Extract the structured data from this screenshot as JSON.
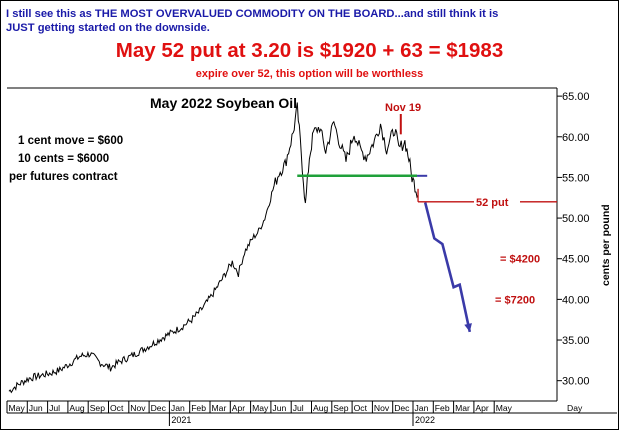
{
  "header": {
    "line1": "I still see this as THE MOST OVERVALUED COMMODITY ON THE BOARD...and still think it is",
    "line2": "JUST getting started on the downside.",
    "headline": "May 52 put at 3.20 is $1920 + 63 = $1983",
    "subnote": "expire over 52, this option will be worthless"
  },
  "colors": {
    "header_text": "#1a1aa8",
    "headline_red": "#e01010",
    "price_line": "#000000",
    "support_line": "#1fa03a",
    "projection": "#3a3aa8",
    "annotation_red": "#c01010"
  },
  "chart_data": {
    "type": "line",
    "title": "May 2022 Soybean Oil",
    "ylabel": "cents per pound",
    "xlabel": "Day",
    "ylim": [
      27.5,
      66
    ],
    "y_ticks": [
      "30.00",
      "35.00",
      "40.00",
      "45.00",
      "50.00",
      "55.00",
      "60.00",
      "65.00"
    ],
    "x_months": [
      "May",
      "Jun",
      "Jul",
      "Aug",
      "Sep",
      "Oct",
      "Nov",
      "Dec",
      "Jan",
      "Feb",
      "Mar",
      "Apr",
      "May",
      "Jun",
      "Jul",
      "Aug",
      "Sep",
      "Oct",
      "Nov",
      "Dec",
      "Jan",
      "Feb",
      "Mar",
      "Apr",
      "May"
    ],
    "x_years": [
      "2021",
      "2022"
    ],
    "notes": [
      "1 cent move = $600",
      "10 cents = $6000",
      "per futures contract"
    ],
    "series": [
      {
        "values": [
          [
            0,
            28.7
          ],
          [
            0.5,
            29.6
          ],
          [
            1,
            30.3
          ],
          [
            1.5,
            30.6
          ],
          [
            2,
            30.9
          ],
          [
            2.5,
            31.3
          ],
          [
            3,
            32.1
          ],
          [
            3.5,
            33.0
          ],
          [
            4,
            33.3
          ],
          [
            4.5,
            32.2
          ],
          [
            5,
            31.6
          ],
          [
            5.5,
            32.4
          ],
          [
            6,
            33.0
          ],
          [
            6.5,
            33.7
          ],
          [
            7,
            34.4
          ],
          [
            7.5,
            35.2
          ],
          [
            8,
            35.9
          ],
          [
            8.5,
            36.6
          ],
          [
            9,
            37.5
          ],
          [
            9.5,
            38.8
          ],
          [
            10,
            40.5
          ],
          [
            10.5,
            42.5
          ],
          [
            11,
            44.6
          ],
          [
            11.3,
            43.2
          ],
          [
            11.6,
            45.8
          ],
          [
            12,
            47.5
          ],
          [
            12.3,
            48.4
          ],
          [
            12.6,
            50.0
          ],
          [
            13,
            53.5
          ],
          [
            13.3,
            55.6
          ],
          [
            13.6,
            56.6
          ],
          [
            14,
            60.5
          ],
          [
            14.2,
            63.5
          ],
          [
            14.4,
            58.0
          ],
          [
            14.6,
            51.5
          ],
          [
            14.8,
            57.5
          ],
          [
            15,
            60.5
          ],
          [
            15.3,
            61.2
          ],
          [
            15.6,
            58.2
          ],
          [
            16,
            61.8
          ],
          [
            16.3,
            59.2
          ],
          [
            16.6,
            57.0
          ],
          [
            17,
            60.5
          ],
          [
            17.3,
            58.4
          ],
          [
            17.6,
            57.5
          ],
          [
            18,
            59.5
          ],
          [
            18.3,
            61.6
          ],
          [
            18.6,
            58.5
          ],
          [
            19,
            61.0
          ],
          [
            19.2,
            58.5
          ],
          [
            19.5,
            59.4
          ],
          [
            19.7,
            57.3
          ],
          [
            19.85,
            55.0
          ],
          [
            20,
            54.0
          ],
          [
            20.15,
            52.8
          ]
        ]
      }
    ],
    "support_level": 55.2,
    "projection": [
      [
        20.5,
        51.9
      ],
      [
        20.95,
        47.5
      ],
      [
        21.35,
        46.8
      ],
      [
        21.9,
        41.5
      ],
      [
        22.2,
        41.8
      ],
      [
        22.7,
        36.0
      ]
    ],
    "annotations": {
      "nov19_label": "Nov 19",
      "put_label": "52 put",
      "put_level": 52,
      "target1_label": "= $4200",
      "target1_level": 45,
      "target2_label": "= $7200",
      "target2_level": 40
    }
  }
}
